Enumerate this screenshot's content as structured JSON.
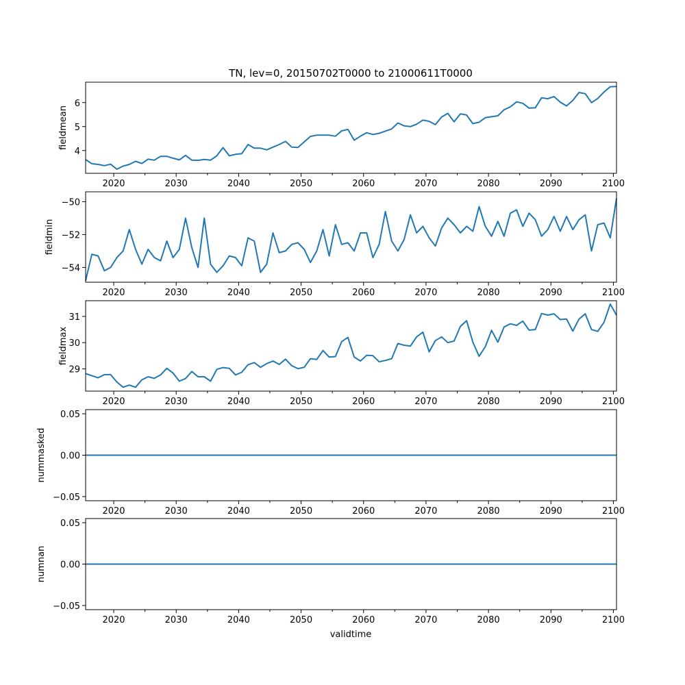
{
  "chart_data": {
    "type": "line",
    "title": "TN, lev=0, 20150702T0000 to 21000611T0000",
    "xlabel": "validtime",
    "x_start": 2015.5,
    "x_step": 1,
    "xlim": [
      2015.5,
      2100.5
    ],
    "xticks": [
      2020,
      2030,
      2040,
      2050,
      2060,
      2070,
      2080,
      2090,
      2100
    ],
    "xtick_labels": [
      "2020",
      "2030",
      "2040",
      "2050",
      "2060",
      "2070",
      "2080",
      "2090",
      "2100"
    ],
    "panels": [
      {
        "ylabel": "fieldmean",
        "ylim": [
          3.05,
          6.85
        ],
        "yticks": [
          4,
          5,
          6
        ],
        "ytick_labels": [
          "4",
          "5",
          "6"
        ],
        "values": [
          3.62,
          3.45,
          3.42,
          3.37,
          3.43,
          3.22,
          3.35,
          3.42,
          3.55,
          3.46,
          3.64,
          3.6,
          3.76,
          3.76,
          3.68,
          3.61,
          3.8,
          3.6,
          3.59,
          3.63,
          3.6,
          3.78,
          4.12,
          3.78,
          3.84,
          3.87,
          4.25,
          4.1,
          4.1,
          4.03,
          4.14,
          4.25,
          4.38,
          4.14,
          4.13,
          4.36,
          4.59,
          4.64,
          4.64,
          4.64,
          4.6,
          4.82,
          4.88,
          4.43,
          4.6,
          4.74,
          4.67,
          4.72,
          4.81,
          4.9,
          5.15,
          5.03,
          5.0,
          5.1,
          5.27,
          5.22,
          5.08,
          5.4,
          5.55,
          5.2,
          5.53,
          5.48,
          5.12,
          5.18,
          5.37,
          5.41,
          5.45,
          5.7,
          5.82,
          6.03,
          5.97,
          5.77,
          5.78,
          6.2,
          6.16,
          6.25,
          6.02,
          5.86,
          6.09,
          6.42,
          6.37,
          6.0,
          6.17,
          6.44,
          6.66,
          6.67
        ]
      },
      {
        "ylabel": "fieldmin",
        "ylim": [
          -54.9,
          -49.4
        ],
        "yticks": [
          -54,
          -52,
          -50
        ],
        "ytick_labels": [
          "−54",
          "−52",
          "−50"
        ],
        "values": [
          -54.8,
          -53.2,
          -53.3,
          -54.2,
          -54.0,
          -53.4,
          -53.0,
          -51.7,
          -52.9,
          -53.8,
          -52.9,
          -53.4,
          -53.6,
          -52.4,
          -53.4,
          -52.9,
          -51.0,
          -52.8,
          -54.0,
          -51.0,
          -53.8,
          -54.3,
          -53.9,
          -53.3,
          -53.4,
          -53.9,
          -52.2,
          -52.4,
          -54.3,
          -53.8,
          -51.9,
          -53.1,
          -53.0,
          -52.6,
          -52.5,
          -52.9,
          -53.7,
          -53.0,
          -51.7,
          -53.3,
          -51.4,
          -52.6,
          -52.5,
          -53.0,
          -51.9,
          -51.9,
          -53.4,
          -52.6,
          -50.6,
          -52.4,
          -53.0,
          -52.3,
          -50.8,
          -51.9,
          -51.5,
          -52.2,
          -52.7,
          -51.6,
          -51.0,
          -51.4,
          -51.9,
          -51.5,
          -51.8,
          -50.3,
          -51.5,
          -52.1,
          -51.2,
          -52.1,
          -50.7,
          -50.5,
          -51.5,
          -50.7,
          -51.1,
          -52.1,
          -51.7,
          -50.9,
          -51.8,
          -50.9,
          -51.7,
          -51.1,
          -50.8,
          -53.0,
          -51.4,
          -51.3,
          -52.2,
          -49.8
        ]
      },
      {
        "ylabel": "fieldmax",
        "ylim": [
          28.15,
          31.6
        ],
        "yticks": [
          29,
          30,
          31
        ],
        "ytick_labels": [
          "29",
          "30",
          "31"
        ],
        "values": [
          28.82,
          28.74,
          28.66,
          28.78,
          28.78,
          28.5,
          28.3,
          28.38,
          28.3,
          28.58,
          28.7,
          28.64,
          28.77,
          29.02,
          28.84,
          28.53,
          28.63,
          28.9,
          28.7,
          28.7,
          28.53,
          28.98,
          29.05,
          29.02,
          28.77,
          28.87,
          29.16,
          29.24,
          29.06,
          29.2,
          29.3,
          29.17,
          29.37,
          29.12,
          29.01,
          29.06,
          29.39,
          29.36,
          29.7,
          29.45,
          29.47,
          30.04,
          30.2,
          29.45,
          29.3,
          29.52,
          29.5,
          29.27,
          29.32,
          29.39,
          29.97,
          29.9,
          29.87,
          30.22,
          30.4,
          29.65,
          30.08,
          30.22,
          30.0,
          30.06,
          30.62,
          30.84,
          30.02,
          29.48,
          29.85,
          30.47,
          30.02,
          30.6,
          30.72,
          30.66,
          30.82,
          30.48,
          30.5,
          31.11,
          31.05,
          31.1,
          30.88,
          30.9,
          30.44,
          30.9,
          31.1,
          30.5,
          30.43,
          30.78,
          31.47,
          31.05
        ]
      },
      {
        "ylabel": "nummasked",
        "ylim": [
          -0.055,
          0.055
        ],
        "yticks": [
          -0.05,
          0.0,
          0.05
        ],
        "ytick_labels": [
          "−0.05",
          "0.00",
          "0.05"
        ],
        "constant": 0
      },
      {
        "ylabel": "numnan",
        "ylim": [
          -0.055,
          0.055
        ],
        "yticks": [
          -0.05,
          0.0,
          0.05
        ],
        "ytick_labels": [
          "−0.05",
          "0.00",
          "0.05"
        ],
        "constant": 0
      }
    ]
  }
}
